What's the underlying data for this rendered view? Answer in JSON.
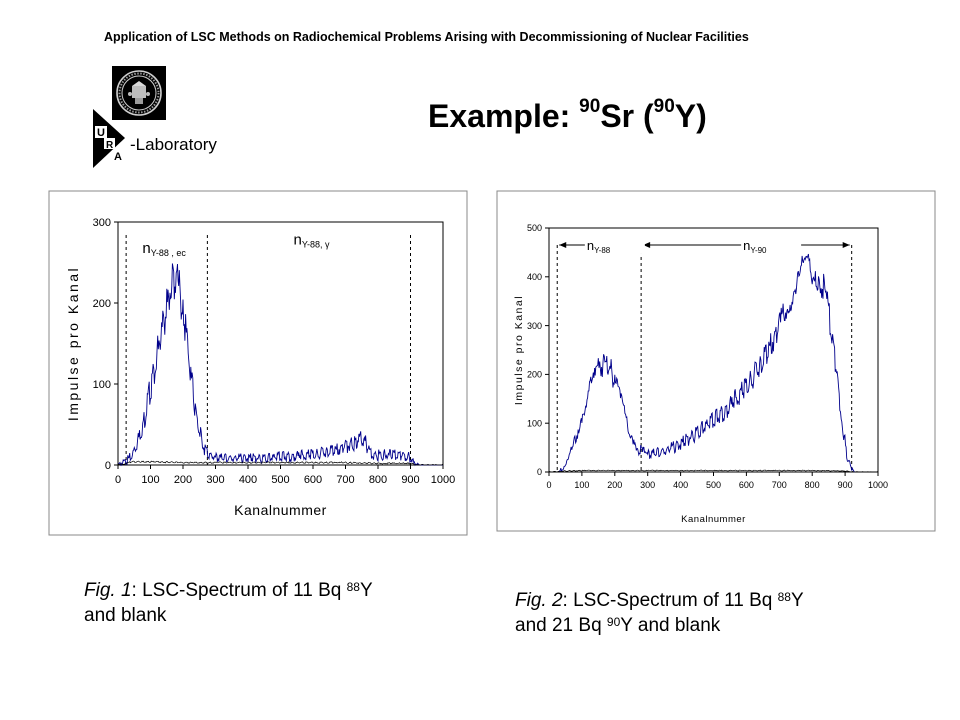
{
  "header": {
    "text": "Application of LSC Methods on Radiochemical Problems Arising with Decommissioning of Nuclear Facilities"
  },
  "logo": {
    "letters": [
      "U",
      "R",
      "A"
    ],
    "text": "-Laboratory"
  },
  "title": {
    "prefix": "Example: ",
    "sr_mass": "90",
    "sr": "Sr (",
    "y_mass": "90",
    "y": "Y)"
  },
  "colors": {
    "spectrum": "#00008b",
    "blank": "#000000",
    "border": "#888888"
  },
  "captions": [
    {
      "fig": "Fig. 1",
      "l1a": ": LSC-Spectrum of 11 Bq ",
      "l1sup": "88",
      "l1b": "Y",
      "l2": "and  blank"
    },
    {
      "fig": "Fig. 2",
      "l1a": ": LSC-Spectrum of 11 Bq ",
      "l1sup": "88",
      "l1b": "Y",
      "l2a": "and 21 Bq ",
      "l2sup": "90",
      "l2b": "Y and blank"
    }
  ],
  "chart_data": [
    {
      "type": "line",
      "xlabel": "Kanalnummer",
      "ylabel": "Impulse pro Kanal",
      "xlim": [
        0,
        1000
      ],
      "ylim": [
        0,
        300
      ],
      "xticks": [
        0,
        100,
        200,
        300,
        400,
        500,
        600,
        700,
        800,
        900,
        1000
      ],
      "yticks": [
        0,
        100,
        200,
        300
      ],
      "window_markers": [
        25,
        275,
        900
      ],
      "annotations": [
        {
          "base": "n",
          "sub": "Y-88 , ec",
          "x": 75,
          "y": 262
        },
        {
          "base": "n",
          "sub": "Y-88, γ",
          "x": 540,
          "y": 272
        }
      ],
      "series": [
        {
          "values": [
            [
              0,
              1
            ],
            [
              20,
              3
            ],
            [
              40,
              10
            ],
            [
              60,
              28
            ],
            [
              80,
              55
            ],
            [
              100,
              95
            ],
            [
              120,
              135
            ],
            [
              140,
              175
            ],
            [
              160,
              215
            ],
            [
              175,
              230
            ],
            [
              185,
              225
            ],
            [
              200,
              190
            ],
            [
              220,
              125
            ],
            [
              240,
              60
            ],
            [
              260,
              25
            ],
            [
              280,
              12
            ],
            [
              300,
              9
            ],
            [
              350,
              8
            ],
            [
              400,
              9
            ],
            [
              450,
              8
            ],
            [
              500,
              10
            ],
            [
              550,
              11
            ],
            [
              600,
              13
            ],
            [
              650,
              16
            ],
            [
              700,
              22
            ],
            [
              730,
              28
            ],
            [
              745,
              35
            ],
            [
              760,
              28
            ],
            [
              780,
              15
            ],
            [
              800,
              12
            ],
            [
              850,
              13
            ],
            [
              880,
              12
            ],
            [
              900,
              9
            ],
            [
              910,
              2
            ],
            [
              930,
              0
            ],
            [
              1000,
              0
            ]
          ]
        },
        {
          "values": [
            [
              0,
              0
            ],
            [
              25,
              2
            ],
            [
              40,
              4
            ],
            [
              100,
              4
            ],
            [
              200,
              3
            ],
            [
              300,
              3
            ],
            [
              400,
              3
            ],
            [
              500,
              3
            ],
            [
              600,
              3
            ],
            [
              700,
              3
            ],
            [
              800,
              2
            ],
            [
              900,
              2
            ],
            [
              920,
              0
            ],
            [
              1000,
              0
            ]
          ]
        }
      ]
    },
    {
      "type": "line",
      "xlabel": "Kanalnummer",
      "ylabel": "Impulse pro Kanal",
      "xlim": [
        0,
        1000
      ],
      "ylim": [
        0,
        500
      ],
      "xticks": [
        0,
        100,
        200,
        300,
        400,
        500,
        600,
        700,
        800,
        900,
        1000
      ],
      "yticks": [
        0,
        100,
        200,
        300,
        400,
        500
      ],
      "window_markers": [
        25,
        280,
        920
      ],
      "annotations": [
        {
          "base": "n",
          "sub": "Y-88",
          "x": 115,
          "y": 455
        },
        {
          "base": "n",
          "sub": "Y-90",
          "x": 590,
          "y": 455
        }
      ],
      "series": [
        {
          "values": [
            [
              30,
              0
            ],
            [
              50,
              12
            ],
            [
              75,
              55
            ],
            [
              100,
              115
            ],
            [
              125,
              170
            ],
            [
              150,
              210
            ],
            [
              170,
              225
            ],
            [
              185,
              215
            ],
            [
              200,
              185
            ],
            [
              225,
              130
            ],
            [
              250,
              78
            ],
            [
              275,
              45
            ],
            [
              300,
              35
            ],
            [
              350,
              42
            ],
            [
              400,
              58
            ],
            [
              450,
              80
            ],
            [
              500,
              105
            ],
            [
              550,
              135
            ],
            [
              600,
              175
            ],
            [
              650,
              225
            ],
            [
              700,
              295
            ],
            [
              725,
              345
            ],
            [
              750,
              385
            ],
            [
              775,
              415
            ],
            [
              800,
              420
            ],
            [
              825,
              400
            ],
            [
              850,
              330
            ],
            [
              870,
              230
            ],
            [
              890,
              110
            ],
            [
              905,
              35
            ],
            [
              920,
              5
            ],
            [
              930,
              0
            ]
          ]
        },
        {
          "values": [
            [
              0,
              0
            ],
            [
              50,
              2
            ],
            [
              100,
              3
            ],
            [
              200,
              3
            ],
            [
              300,
              3
            ],
            [
              400,
              3
            ],
            [
              500,
              3
            ],
            [
              600,
              3
            ],
            [
              700,
              3
            ],
            [
              800,
              3
            ],
            [
              900,
              2
            ],
            [
              930,
              0
            ],
            [
              1000,
              0
            ]
          ]
        }
      ]
    }
  ]
}
